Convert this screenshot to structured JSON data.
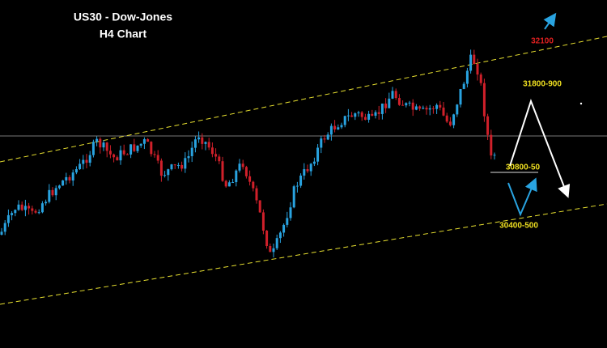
{
  "header": {
    "title": "US30 - Dow-Jones",
    "subtitle": "H4 Chart"
  },
  "annotations": [
    {
      "label": "32100"
    },
    {
      "label": "31800-900"
    },
    {
      "label": "30800-50"
    },
    {
      "label": "30400-500"
    }
  ]
}
